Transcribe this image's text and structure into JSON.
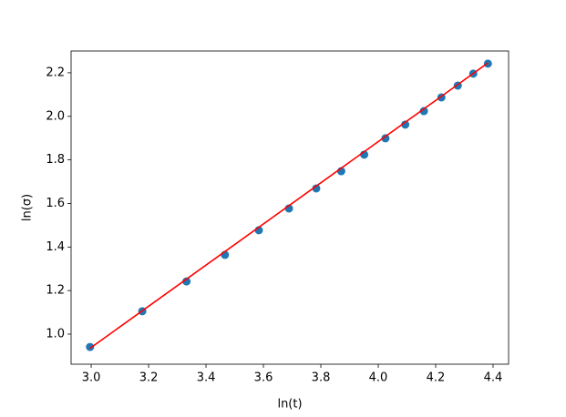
{
  "chart_data": {
    "type": "scatter",
    "xlabel": "ln(t)",
    "ylabel": "ln(σ)",
    "xlim": [
      2.93,
      4.454
    ],
    "ylim": [
      0.862,
      2.3
    ],
    "xticks": [
      {
        "value": 3,
        "label": "3.0"
      },
      3.2,
      3.4,
      3.6,
      3.8,
      {
        "value": 4,
        "label": "4.0"
      },
      4.2,
      4.4
    ],
    "yticks": [
      {
        "value": 1,
        "label": "1.0"
      },
      1.2,
      1.4,
      1.6,
      1.8,
      {
        "value": 2,
        "label": "2.0"
      },
      2.2
    ],
    "series": [
      {
        "type": "scatter",
        "color": "#1f77b4",
        "x": [
          2.996,
          3.178,
          3.332,
          3.466,
          3.584,
          3.689,
          3.784,
          3.871,
          3.951,
          4.025,
          4.094,
          4.159,
          4.22,
          4.277,
          4.331,
          4.382
        ],
        "values": [
          0.941,
          1.105,
          1.242,
          1.364,
          1.477,
          1.577,
          1.669,
          1.748,
          1.824,
          1.899,
          1.962,
          2.024,
          2.087,
          2.141,
          2.196,
          2.242
        ]
      },
      {
        "type": "line",
        "color": "#ff0000",
        "x": [
          2.996,
          4.382
        ],
        "values": [
          0.935,
          2.245
        ]
      }
    ]
  }
}
